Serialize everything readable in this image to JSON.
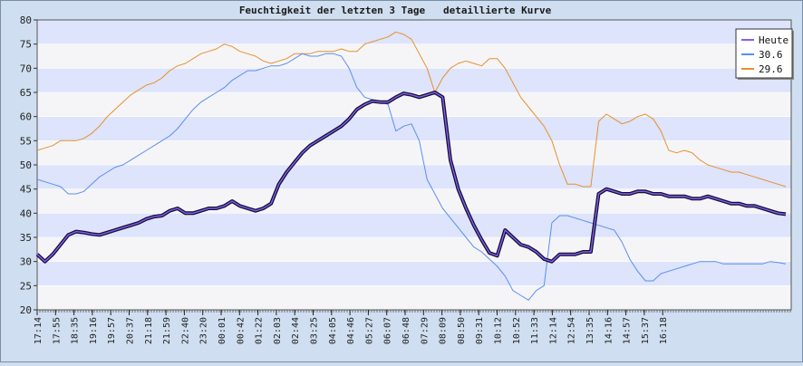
{
  "chart_data": {
    "type": "line",
    "title": "Feuchtigkeit der letzten 3 Tage   detaillierte Kurve",
    "xlabel": "",
    "ylabel": "",
    "ylim": [
      20,
      80
    ],
    "y_ticks": [
      20,
      25,
      30,
      35,
      40,
      45,
      50,
      55,
      60,
      65,
      70,
      75,
      80
    ],
    "grid": true,
    "legend_position": "top-right",
    "x_tick_labels": [
      "17:14",
      "17:55",
      "18:35",
      "19:16",
      "19:57",
      "20:37",
      "21:18",
      "21:59",
      "22:40",
      "23:20",
      "00:01",
      "00:42",
      "01:22",
      "02:03",
      "02:44",
      "03:25",
      "04:05",
      "04:46",
      "05:27",
      "06:07",
      "06:48",
      "07:29",
      "08:09",
      "08:50",
      "09:31",
      "10:12",
      "10:52",
      "11:33",
      "12:14",
      "12:54",
      "13:35",
      "14:16",
      "14:57",
      "15:37",
      "16:18"
    ],
    "series": [
      {
        "name": "Heute",
        "color": "#8a5cf0",
        "values": [
          31.5,
          30.0,
          31.5,
          33.5,
          35.5,
          36.2,
          36.0,
          35.7,
          35.5,
          36.0,
          36.5,
          37.0,
          37.5,
          38.0,
          38.8,
          39.3,
          39.5,
          40.5,
          41.0,
          40.0,
          40.0,
          40.5,
          41.0,
          41.0,
          41.5,
          42.5,
          41.5,
          41.0,
          40.5,
          41.0,
          42.0,
          46.0,
          48.5,
          50.5,
          52.5,
          54.0,
          55.0,
          56.0,
          57.0,
          58.0,
          59.5,
          61.5,
          62.5,
          63.2,
          63.0,
          63.0,
          64.0,
          64.8,
          64.5,
          64.0,
          64.5,
          65.0,
          64.0,
          51.0,
          45.0,
          41.0,
          37.5,
          34.5,
          31.8,
          31.2,
          36.5,
          35.0,
          33.5,
          33.0,
          32.0,
          30.5,
          30.0,
          31.5,
          31.5,
          31.5,
          32.0,
          32.0,
          44.0,
          45.0,
          44.5,
          44.0,
          44.0,
          44.5,
          44.5,
          44.0,
          44.0,
          43.5,
          43.5,
          43.5,
          43.0,
          43.0,
          43.5,
          43.0,
          42.5,
          42.0,
          42.0,
          41.5,
          41.5,
          41.0,
          40.5,
          40.0,
          39.8
        ]
      },
      {
        "name": "30.6",
        "color": "#5b8ef0",
        "values": [
          47.0,
          46.5,
          46.0,
          45.5,
          44.0,
          44.0,
          44.5,
          46.0,
          47.5,
          48.5,
          49.5,
          50.0,
          51.0,
          52.0,
          53.0,
          54.0,
          55.0,
          56.0,
          57.5,
          59.5,
          61.5,
          63.0,
          64.0,
          65.0,
          66.0,
          67.5,
          68.5,
          69.5,
          69.5,
          70.0,
          70.5,
          70.5,
          71.0,
          72.0,
          73.0,
          72.5,
          72.5,
          73.0,
          73.0,
          72.5,
          70.0,
          66.0,
          64.0,
          63.5,
          63.0,
          62.5,
          57.0,
          58.0,
          58.5,
          55.0,
          47.0,
          44.0,
          41.0,
          39.0,
          37.0,
          35.0,
          33.0,
          32.0,
          30.5,
          29.0,
          27.0,
          24.0,
          23.0,
          22.0,
          24.0,
          25.0,
          38.0,
          39.5,
          39.5,
          39.0,
          38.5,
          38.0,
          37.5,
          37.0,
          36.5,
          34.0,
          30.5,
          28.0,
          26.0,
          26.0,
          27.5,
          28.0,
          28.5,
          29.0,
          29.5,
          30.0,
          30.0,
          30.0,
          29.5,
          29.5,
          29.5,
          29.5,
          29.5,
          29.5,
          30.0,
          29.8,
          29.5
        ]
      },
      {
        "name": "29.6",
        "color": "#e8902a",
        "values": [
          53.0,
          53.5,
          54.0,
          55.0,
          55.0,
          55.0,
          55.5,
          56.5,
          58.0,
          60.0,
          61.5,
          63.0,
          64.5,
          65.5,
          66.5,
          67.0,
          68.0,
          69.5,
          70.5,
          71.0,
          72.0,
          73.0,
          73.5,
          74.0,
          75.0,
          74.5,
          73.5,
          73.0,
          72.5,
          71.5,
          71.0,
          71.5,
          72.0,
          73.0,
          73.0,
          73.0,
          73.5,
          73.5,
          73.5,
          74.0,
          73.5,
          73.5,
          75.0,
          75.5,
          76.0,
          76.5,
          77.5,
          77.0,
          76.0,
          73.0,
          70.0,
          65.0,
          68.0,
          70.0,
          71.0,
          71.5,
          71.0,
          70.5,
          72.0,
          72.0,
          70.0,
          67.0,
          64.0,
          62.0,
          60.0,
          58.0,
          55.0,
          50.0,
          46.0,
          46.0,
          45.5,
          45.5,
          59.0,
          60.5,
          59.5,
          58.5,
          59.0,
          60.0,
          60.5,
          59.5,
          57.0,
          53.0,
          52.5,
          53.0,
          52.5,
          51.0,
          50.0,
          49.5,
          49.0,
          48.5,
          48.5,
          48.0,
          47.5,
          47.0,
          46.5,
          46.0,
          45.5
        ]
      }
    ]
  }
}
